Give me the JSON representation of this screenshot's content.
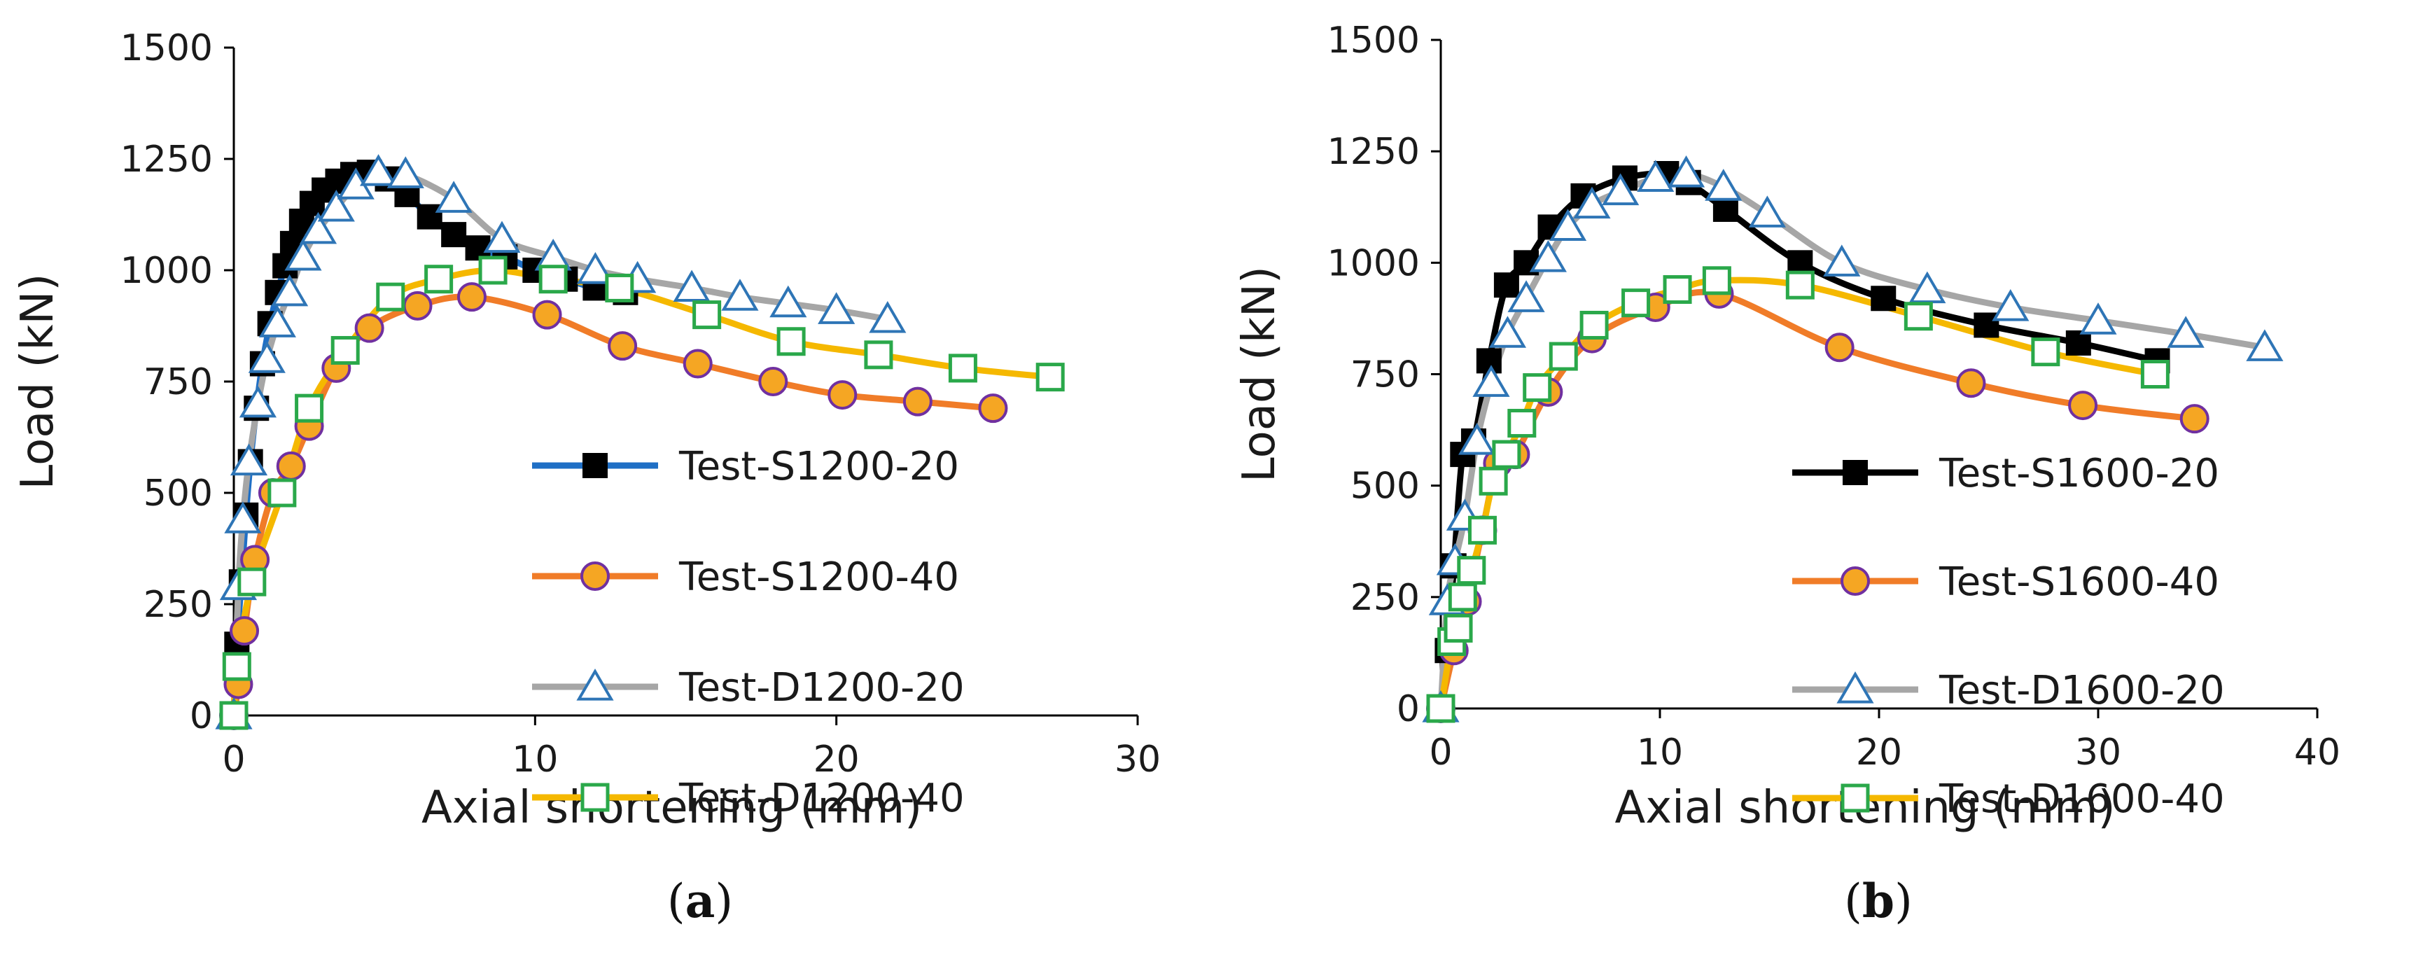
{
  "chart_data": [
    {
      "type": "line",
      "panel_label": "(a)",
      "xlabel": "Axial shortening (mm)",
      "ylabel": "Load (kN)",
      "xlim": [
        0,
        30
      ],
      "ylim": [
        0,
        1500
      ],
      "x_ticks": [
        0,
        10,
        20,
        30
      ],
      "y_ticks": [
        0,
        250,
        500,
        750,
        1000,
        1250,
        1500
      ],
      "grid": false,
      "legend_position": "bottom-right",
      "series": [
        {
          "name": "Test-S1200-20",
          "color": "#1f6fc5",
          "marker": "filled-square",
          "marker_color": "#000000",
          "x": [
            0,
            0.1,
            0.25,
            0.4,
            0.55,
            0.75,
            0.95,
            1.2,
            1.45,
            1.7,
            1.95,
            2.25,
            2.6,
            3.0,
            3.45,
            3.95,
            4.5,
            5.1,
            5.75,
            6.5,
            7.3,
            8.1,
            9.0,
            10.0,
            11.0,
            12.0,
            13.0
          ],
          "y": [
            0,
            160,
            300,
            450,
            570,
            690,
            790,
            880,
            950,
            1010,
            1060,
            1110,
            1150,
            1180,
            1200,
            1215,
            1220,
            1205,
            1170,
            1120,
            1080,
            1050,
            1030,
            1000,
            980,
            960,
            950
          ]
        },
        {
          "name": "Test-S1200-40",
          "color": "#f07c28",
          "marker": "circle",
          "marker_fill": "#f5a623",
          "marker_stroke": "#7030a0",
          "x": [
            0,
            0.15,
            0.35,
            0.7,
            1.3,
            1.9,
            2.5,
            3.4,
            4.5,
            6.1,
            7.9,
            10.4,
            12.9,
            15.4,
            17.9,
            20.2,
            22.7,
            25.2
          ],
          "y": [
            0,
            70,
            190,
            350,
            500,
            560,
            650,
            780,
            870,
            920,
            940,
            900,
            830,
            790,
            750,
            720,
            705,
            690
          ]
        },
        {
          "name": "Test-D1200-20",
          "color": "#a6a6a6",
          "marker": "open-triangle",
          "marker_stroke": "#2e75b6",
          "x": [
            0,
            0.15,
            0.3,
            0.5,
            0.8,
            1.1,
            1.45,
            1.85,
            2.3,
            2.8,
            3.4,
            4.05,
            4.8,
            5.7,
            7.3,
            8.9,
            10.6,
            12.0,
            13.4,
            15.2,
            16.8,
            18.4,
            20.0,
            21.7
          ],
          "y": [
            0,
            290,
            440,
            570,
            700,
            800,
            880,
            950,
            1030,
            1090,
            1140,
            1190,
            1220,
            1215,
            1160,
            1070,
            1030,
            1000,
            980,
            960,
            940,
            925,
            910,
            890
          ]
        },
        {
          "name": "Test-D1200-40",
          "color": "#f5b800",
          "marker": "open-square",
          "marker_stroke": "#2aa84a",
          "x": [
            0,
            0.1,
            0.6,
            1.6,
            2.5,
            3.7,
            5.2,
            6.8,
            8.6,
            10.6,
            12.8,
            15.7,
            18.5,
            21.4,
            24.2,
            27.1
          ],
          "y": [
            0,
            110,
            300,
            500,
            690,
            820,
            940,
            980,
            1000,
            980,
            960,
            900,
            840,
            810,
            780,
            760
          ]
        }
      ]
    },
    {
      "type": "line",
      "panel_label": "(b)",
      "xlabel": "Axial shortening (mm)",
      "ylabel": "Load (kN)",
      "xlim": [
        0,
        40
      ],
      "ylim": [
        0,
        1500
      ],
      "x_ticks": [
        0,
        10,
        20,
        30,
        40
      ],
      "y_ticks": [
        0,
        250,
        500,
        750,
        1000,
        1250,
        1500
      ],
      "grid": false,
      "legend_position": "bottom-right",
      "series": [
        {
          "name": "Test-S1600-20",
          "color": "#000000",
          "marker": "filled-square",
          "marker_color": "#000000",
          "x": [
            0,
            0.3,
            0.6,
            1.0,
            1.5,
            2.2,
            3.0,
            3.9,
            5.0,
            6.5,
            8.4,
            10.3,
            11.3,
            13.0,
            16.4,
            20.2,
            24.9,
            29.1,
            32.7
          ],
          "y": [
            0,
            130,
            320,
            570,
            600,
            780,
            950,
            1000,
            1080,
            1150,
            1190,
            1200,
            1180,
            1120,
            1000,
            920,
            860,
            820,
            780
          ]
        },
        {
          "name": "Test-S1600-40",
          "color": "#f07c28",
          "marker": "circle",
          "marker_fill": "#f5a623",
          "marker_stroke": "#7030a0",
          "x": [
            0,
            0.6,
            1.2,
            1.9,
            2.6,
            3.4,
            4.9,
            6.9,
            9.8,
            12.7,
            18.2,
            24.2,
            29.3,
            34.4
          ],
          "y": [
            0,
            130,
            240,
            400,
            550,
            570,
            710,
            830,
            900,
            930,
            810,
            730,
            680,
            650
          ]
        },
        {
          "name": "Test-D1600-20",
          "color": "#a6a6a6",
          "marker": "open-triangle",
          "marker_stroke": "#2e75b6",
          "x": [
            0,
            0.3,
            0.65,
            1.1,
            1.65,
            2.3,
            3.05,
            3.9,
            4.9,
            5.8,
            6.9,
            8.2,
            9.8,
            11.2,
            12.9,
            14.9,
            18.3,
            22.2,
            26.0,
            30.0,
            34.0,
            37.6
          ],
          "y": [
            0,
            240,
            330,
            430,
            600,
            730,
            840,
            920,
            1010,
            1080,
            1130,
            1160,
            1190,
            1200,
            1170,
            1110,
            1000,
            940,
            900,
            870,
            840,
            810
          ]
        },
        {
          "name": "Test-D1600-40",
          "color": "#f5b800",
          "marker": "open-square",
          "marker_stroke": "#2aa84a",
          "x": [
            0,
            0.5,
            0.8,
            1.0,
            1.4,
            1.9,
            2.4,
            3.0,
            3.7,
            4.4,
            5.6,
            7.0,
            8.9,
            10.8,
            12.6,
            16.4,
            21.8,
            27.6,
            32.6
          ],
          "y": [
            0,
            150,
            180,
            250,
            310,
            400,
            510,
            570,
            640,
            720,
            790,
            860,
            910,
            940,
            960,
            950,
            880,
            800,
            750
          ]
        }
      ]
    }
  ]
}
